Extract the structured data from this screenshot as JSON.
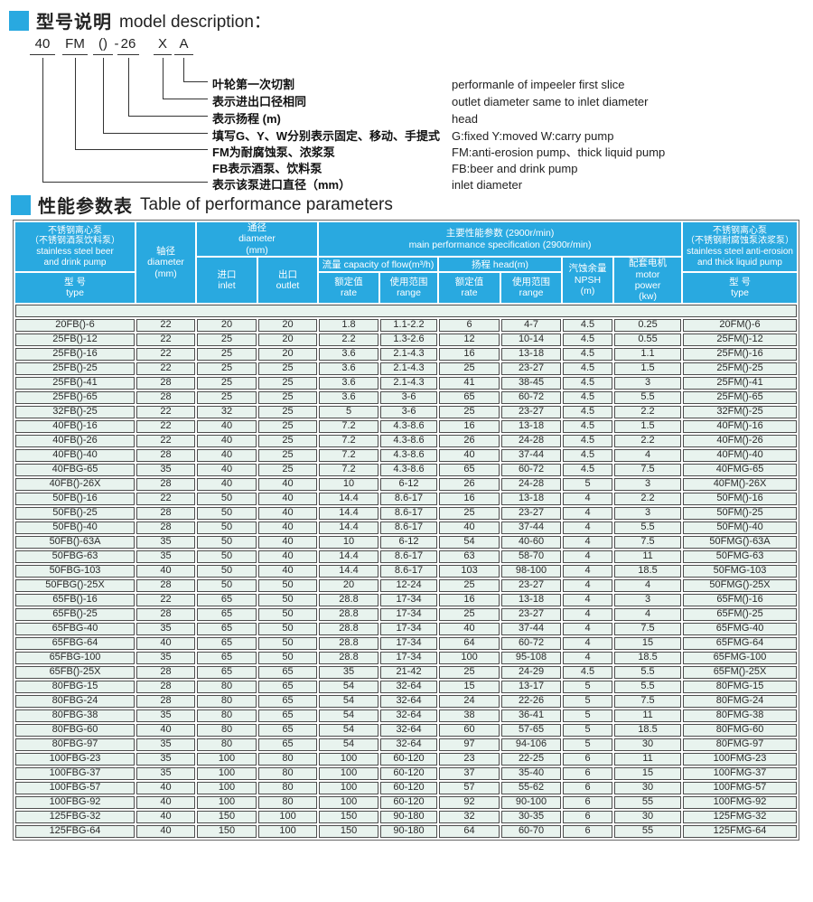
{
  "colors": {
    "accent": "#29a9e0",
    "row_bg": "#e8f3ee",
    "band": "#31444e",
    "border": "#4d4d4d",
    "text": "#222222",
    "header_text": "#ffffff"
  },
  "model_section": {
    "title_zh": "型号说明",
    "title_en": "model description：",
    "tokens": [
      "40",
      "FM",
      "()",
      "-",
      "26",
      "X",
      "A"
    ],
    "legend": [
      {
        "zh": "叶轮第一次切割",
        "en": "performanle of impeeler first slice"
      },
      {
        "zh": "表示进出口径相同",
        "en": "outlet diameter same to inlet diameter"
      },
      {
        "zh": "表示扬程 (m)",
        "en": "head"
      },
      {
        "zh": "填写G、Y、W分别表示固定、移动、手提式",
        "en": "G:fixed Y:moved W:carry pump"
      },
      {
        "zh": "FM为耐腐蚀泵、浓浆泵",
        "en": "FM:anti-erosion pump、thick liquid pump"
      },
      {
        "zh": "FB表示酒泵、饮料泵",
        "en": "FB:beer and drink pump"
      },
      {
        "zh": "表示该泵进口直径（mm）",
        "en": "inlet diameter"
      }
    ]
  },
  "param_section": {
    "title_zh": "性能参数表",
    "title_en": "Table of performance parameters"
  },
  "table": {
    "header": {
      "fb_group": "不锈钢离心泵\n（不锈钢酒泵饮料泵）\nstainless steel beer\nand drink pump",
      "type_label": "型  号\ntype",
      "shaft": "轴径\ndiameter\n(mm)",
      "bore_group": "通径\ndiameter\n(mm)",
      "inlet": "进口\ninlet",
      "outlet": "出口\noutlet",
      "main_group": "主要性能参数 (2900r/min)\nmain performance specification (2900r/min)",
      "flow_group": "流量 capacity of flow(m³/h)",
      "head_group": "扬程  head(m)",
      "rate": "额定值\nrate",
      "range": "使用范围\nrange",
      "npsh": "汽蚀余量\nNPSH\n(m)",
      "power": "配套电机\nmotor\npower\n(kw)",
      "fm_group": "不锈钢离心泵\n（不锈钢耐腐蚀泵浓浆泵）\nstainless steel anti-erosion\nand thick liquid pump"
    },
    "rows": [
      [
        "20FB()-6",
        "22",
        "20",
        "20",
        "1.8",
        "1.1-2.2",
        "6",
        "4-7",
        "4.5",
        "0.25",
        "20FM()-6"
      ],
      [
        "25FB()-12",
        "22",
        "25",
        "20",
        "2.2",
        "1.3-2.6",
        "12",
        "10-14",
        "4.5",
        "0.55",
        "25FM()-12"
      ],
      [
        "25FB()-16",
        "22",
        "25",
        "20",
        "3.6",
        "2.1-4.3",
        "16",
        "13-18",
        "4.5",
        "1.1",
        "25FM()-16"
      ],
      [
        "25FB()-25",
        "22",
        "25",
        "25",
        "3.6",
        "2.1-4.3",
        "25",
        "23-27",
        "4.5",
        "1.5",
        "25FM()-25"
      ],
      [
        "25FB()-41",
        "28",
        "25",
        "25",
        "3.6",
        "2.1-4.3",
        "41",
        "38-45",
        "4.5",
        "3",
        "25FM()-41"
      ],
      [
        "25FB()-65",
        "28",
        "25",
        "25",
        "3.6",
        "3-6",
        "65",
        "60-72",
        "4.5",
        "5.5",
        "25FM()-65"
      ],
      [
        "32FB()-25",
        "22",
        "32",
        "25",
        "5",
        "3-6",
        "25",
        "23-27",
        "4.5",
        "2.2",
        "32FM()-25"
      ],
      [
        "40FB()-16",
        "22",
        "40",
        "25",
        "7.2",
        "4.3-8.6",
        "16",
        "13-18",
        "4.5",
        "1.5",
        "40FM()-16"
      ],
      [
        "40FB()-26",
        "22",
        "40",
        "25",
        "7.2",
        "4.3-8.6",
        "26",
        "24-28",
        "4.5",
        "2.2",
        "40FM()-26"
      ],
      [
        "40FB()-40",
        "28",
        "40",
        "25",
        "7.2",
        "4.3-8.6",
        "40",
        "37-44",
        "4.5",
        "4",
        "40FM()-40"
      ],
      [
        "40FBG-65",
        "35",
        "40",
        "25",
        "7.2",
        "4.3-8.6",
        "65",
        "60-72",
        "4.5",
        "7.5",
        "40FMG-65"
      ],
      [
        "40FB()-26X",
        "28",
        "40",
        "40",
        "10",
        "6-12",
        "26",
        "24-28",
        "5",
        "3",
        "40FM()-26X"
      ],
      [
        "50FB()-16",
        "22",
        "50",
        "40",
        "14.4",
        "8.6-17",
        "16",
        "13-18",
        "4",
        "2.2",
        "50FM()-16"
      ],
      [
        "50FB()-25",
        "28",
        "50",
        "40",
        "14.4",
        "8.6-17",
        "25",
        "23-27",
        "4",
        "3",
        "50FM()-25"
      ],
      [
        "50FB()-40",
        "28",
        "50",
        "40",
        "14.4",
        "8.6-17",
        "40",
        "37-44",
        "4",
        "5.5",
        "50FM()-40"
      ],
      [
        "50FB()-63A",
        "35",
        "50",
        "40",
        "10",
        "6-12",
        "54",
        "40-60",
        "4",
        "7.5",
        "50FMG()-63A"
      ],
      [
        "50FBG-63",
        "35",
        "50",
        "40",
        "14.4",
        "8.6-17",
        "63",
        "58-70",
        "4",
        "11",
        "50FMG-63"
      ],
      [
        "50FBG-103",
        "40",
        "50",
        "40",
        "14.4",
        "8.6-17",
        "103",
        "98-100",
        "4",
        "18.5",
        "50FMG-103"
      ],
      [
        "50FBG()-25X",
        "28",
        "50",
        "50",
        "20",
        "12-24",
        "25",
        "23-27",
        "4",
        "4",
        "50FMG()-25X"
      ],
      [
        "65FB()-16",
        "22",
        "65",
        "50",
        "28.8",
        "17-34",
        "16",
        "13-18",
        "4",
        "3",
        "65FM()-16"
      ],
      [
        "65FB()-25",
        "28",
        "65",
        "50",
        "28.8",
        "17-34",
        "25",
        "23-27",
        "4",
        "4",
        "65FM()-25"
      ],
      [
        "65FBG-40",
        "35",
        "65",
        "50",
        "28.8",
        "17-34",
        "40",
        "37-44",
        "4",
        "7.5",
        "65FMG-40"
      ],
      [
        "65FBG-64",
        "40",
        "65",
        "50",
        "28.8",
        "17-34",
        "64",
        "60-72",
        "4",
        "15",
        "65FMG-64"
      ],
      [
        "65FBG-100",
        "35",
        "65",
        "50",
        "28.8",
        "17-34",
        "100",
        "95-108",
        "4",
        "18.5",
        "65FMG-100"
      ],
      [
        "65FB()-25X",
        "28",
        "65",
        "65",
        "35",
        "21-42",
        "25",
        "24-29",
        "4.5",
        "5.5",
        "65FM()-25X"
      ],
      [
        "80FBG-15",
        "28",
        "80",
        "65",
        "54",
        "32-64",
        "15",
        "13-17",
        "5",
        "5.5",
        "80FMG-15"
      ],
      [
        "80FBG-24",
        "28",
        "80",
        "65",
        "54",
        "32-64",
        "24",
        "22-26",
        "5",
        "7.5",
        "80FMG-24"
      ],
      [
        "80FBG-38",
        "35",
        "80",
        "65",
        "54",
        "32-64",
        "38",
        "36-41",
        "5",
        "11",
        "80FMG-38"
      ],
      [
        "80FBG-60",
        "40",
        "80",
        "65",
        "54",
        "32-64",
        "60",
        "57-65",
        "5",
        "18.5",
        "80FMG-60"
      ],
      [
        "80FBG-97",
        "35",
        "80",
        "65",
        "54",
        "32-64",
        "97",
        "94-106",
        "5",
        "30",
        "80FMG-97"
      ],
      [
        "100FBG-23",
        "35",
        "100",
        "80",
        "100",
        "60-120",
        "23",
        "22-25",
        "6",
        "11",
        "100FMG-23"
      ],
      [
        "100FBG-37",
        "35",
        "100",
        "80",
        "100",
        "60-120",
        "37",
        "35-40",
        "6",
        "15",
        "100FMG-37"
      ],
      [
        "100FBG-57",
        "40",
        "100",
        "80",
        "100",
        "60-120",
        "57",
        "55-62",
        "6",
        "30",
        "100FMG-57"
      ],
      [
        "100FBG-92",
        "40",
        "100",
        "80",
        "100",
        "60-120",
        "92",
        "90-100",
        "6",
        "55",
        "100FMG-92"
      ],
      [
        "125FBG-32",
        "40",
        "150",
        "100",
        "150",
        "90-180",
        "32",
        "30-35",
        "6",
        "30",
        "125FMG-32"
      ],
      [
        "125FBG-64",
        "40",
        "150",
        "100",
        "150",
        "90-180",
        "64",
        "60-70",
        "6",
        "55",
        "125FMG-64"
      ]
    ]
  }
}
